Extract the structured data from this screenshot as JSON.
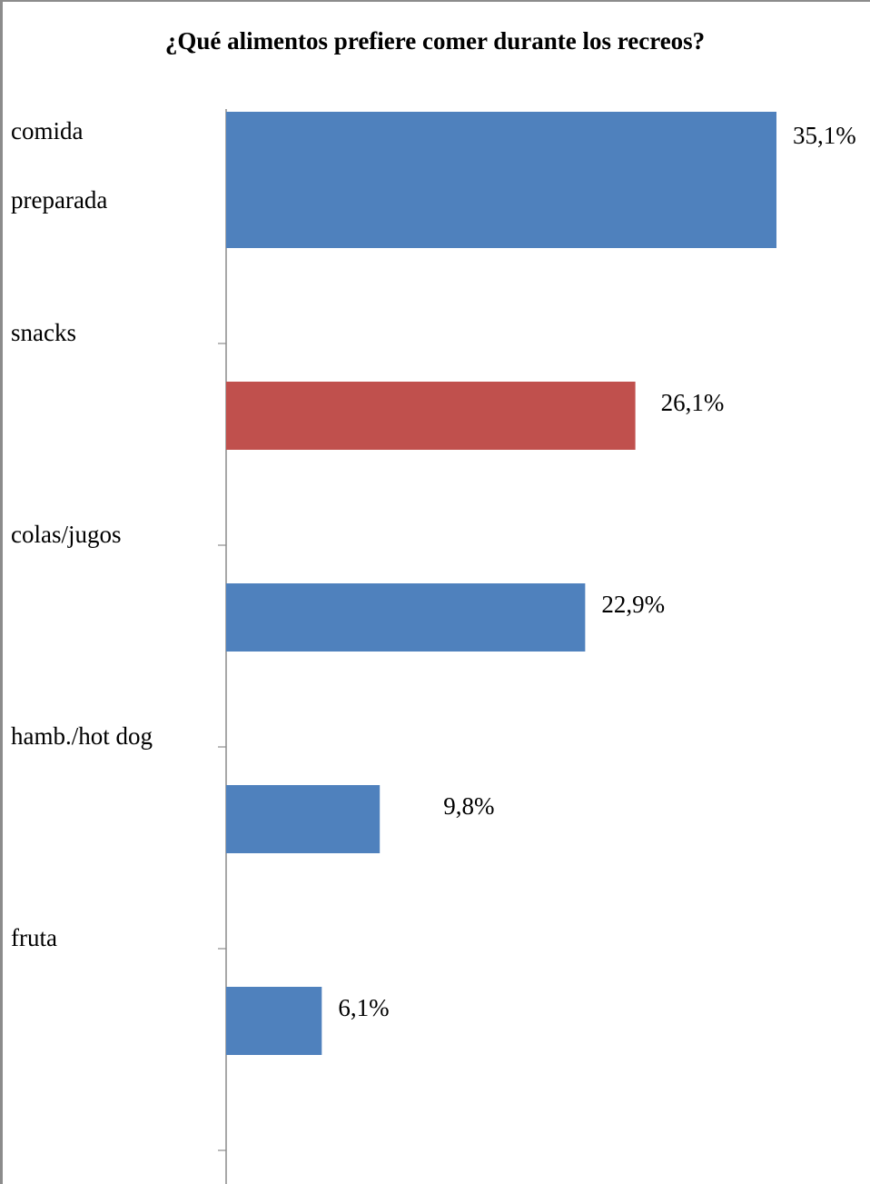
{
  "chart_data": {
    "type": "bar",
    "orientation": "horizontal",
    "title": "¿Qué alimentos prefiere comer durante los recreos?",
    "categories": [
      "comida preparada",
      "snacks",
      "colas/jugos",
      "hamb./hot dog",
      "fruta"
    ],
    "category_lines": [
      [
        "comida",
        "preparada"
      ],
      [
        "snacks"
      ],
      [
        "colas/jugos"
      ],
      [
        "hamb./hot dog"
      ],
      [
        "fruta"
      ]
    ],
    "values": [
      35.1,
      26.1,
      22.9,
      9.8,
      6.1
    ],
    "data_labels": [
      "35,1%",
      "26,1%",
      "22,9%",
      "9,8%",
      "6,1%"
    ],
    "bar_colors": [
      "#4f81bd",
      "#c0504d",
      "#4f81bd",
      "#4f81bd",
      "#4f81bd"
    ],
    "xlim": [
      0,
      35.1
    ],
    "grid": false,
    "legend": "none"
  }
}
